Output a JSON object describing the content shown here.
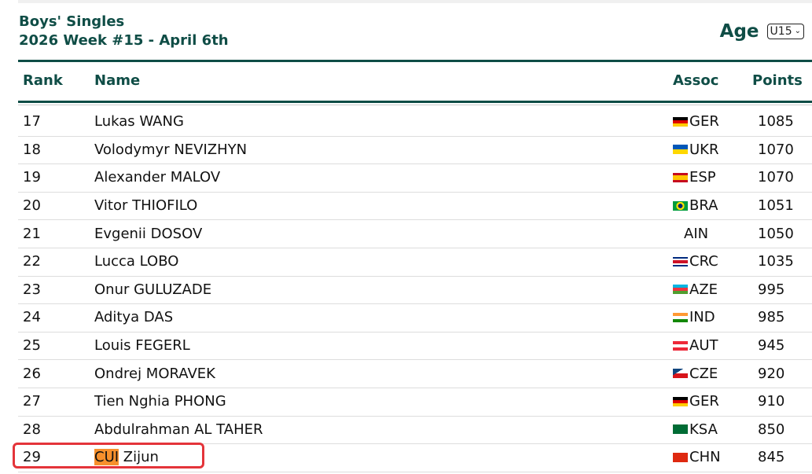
{
  "header": {
    "title": "Boys' Singles",
    "subtitle": "2026 Week #15 - April 6th",
    "age_label": "Age",
    "age_selected": "U15"
  },
  "columns": {
    "rank": "Rank",
    "name": "Name",
    "assoc": "Assoc",
    "points": "Points"
  },
  "rows": [
    {
      "rank": "17",
      "name": "Lukas WANG",
      "assoc": "GER",
      "points": "1085",
      "flag": "linear-gradient(#000 33%,#d00 33% 66%,#fc0 66%)"
    },
    {
      "rank": "18",
      "name": "Volodymyr NEVIZHYN",
      "assoc": "UKR",
      "points": "1070",
      "flag": "linear-gradient(#0057b7 50%,#ffd700 50%)"
    },
    {
      "rank": "19",
      "name": "Alexander MALOV",
      "assoc": "ESP",
      "points": "1070",
      "flag": "linear-gradient(#c60b1e 25%,#ffc400 25% 75%,#c60b1e 75%)"
    },
    {
      "rank": "20",
      "name": "Vitor THIOFILO",
      "assoc": "BRA",
      "points": "1051",
      "flag": "radial-gradient(circle,#002776 25%,#fedf00 26% 45%,#009c3b 46%)"
    },
    {
      "rank": "21",
      "name": "Evgenii DOSOV",
      "assoc": "AIN",
      "points": "1050",
      "flag": ""
    },
    {
      "rank": "22",
      "name": "Lucca LOBO",
      "assoc": "CRC",
      "points": "1035",
      "flag": "linear-gradient(#002b7f 17%,#fff 17% 33%,#ce1126 33% 67%,#fff 67% 83%,#002b7f 83%)"
    },
    {
      "rank": "23",
      "name": "Onur GULUZADE",
      "assoc": "AZE",
      "points": "995",
      "flag": "linear-gradient(#00b5e2 33%,#ef3340 33% 66%,#509e2f 66%)"
    },
    {
      "rank": "24",
      "name": "Aditya DAS",
      "assoc": "IND",
      "points": "985",
      "flag": "linear-gradient(#f93 33%,#fff 33% 66%,#138808 66%)"
    },
    {
      "rank": "25",
      "name": "Louis FEGERL",
      "assoc": "AUT",
      "points": "945",
      "flag": "linear-gradient(#ed2939 33%,#fff 33% 66%,#ed2939 66%)"
    },
    {
      "rank": "26",
      "name": "Ondrej MORAVEK",
      "assoc": "CZE",
      "points": "920",
      "flag": "linear-gradient(to bottom right,#11457e 35%,transparent 35%),linear-gradient(#fff 50%,#d7141a 50%)"
    },
    {
      "rank": "27",
      "name": "Tien Nghia PHONG",
      "assoc": "GER",
      "points": "910",
      "flag": "linear-gradient(#000 33%,#d00 33% 66%,#fc0 66%)"
    },
    {
      "rank": "28",
      "name": "Abdulrahman AL TAHER",
      "assoc": "KSA",
      "points": "850",
      "flag": "linear-gradient(#006c35,#006c35)"
    },
    {
      "rank": "29",
      "name_highlight": "CUI",
      "name_rest": " Zijun",
      "assoc": "CHN",
      "points": "845",
      "flag": "linear-gradient(#de2910,#de2910)"
    }
  ],
  "colors": {
    "accent": "#0f4d46",
    "highlight": "#f7902c",
    "box": "#e4343a"
  }
}
